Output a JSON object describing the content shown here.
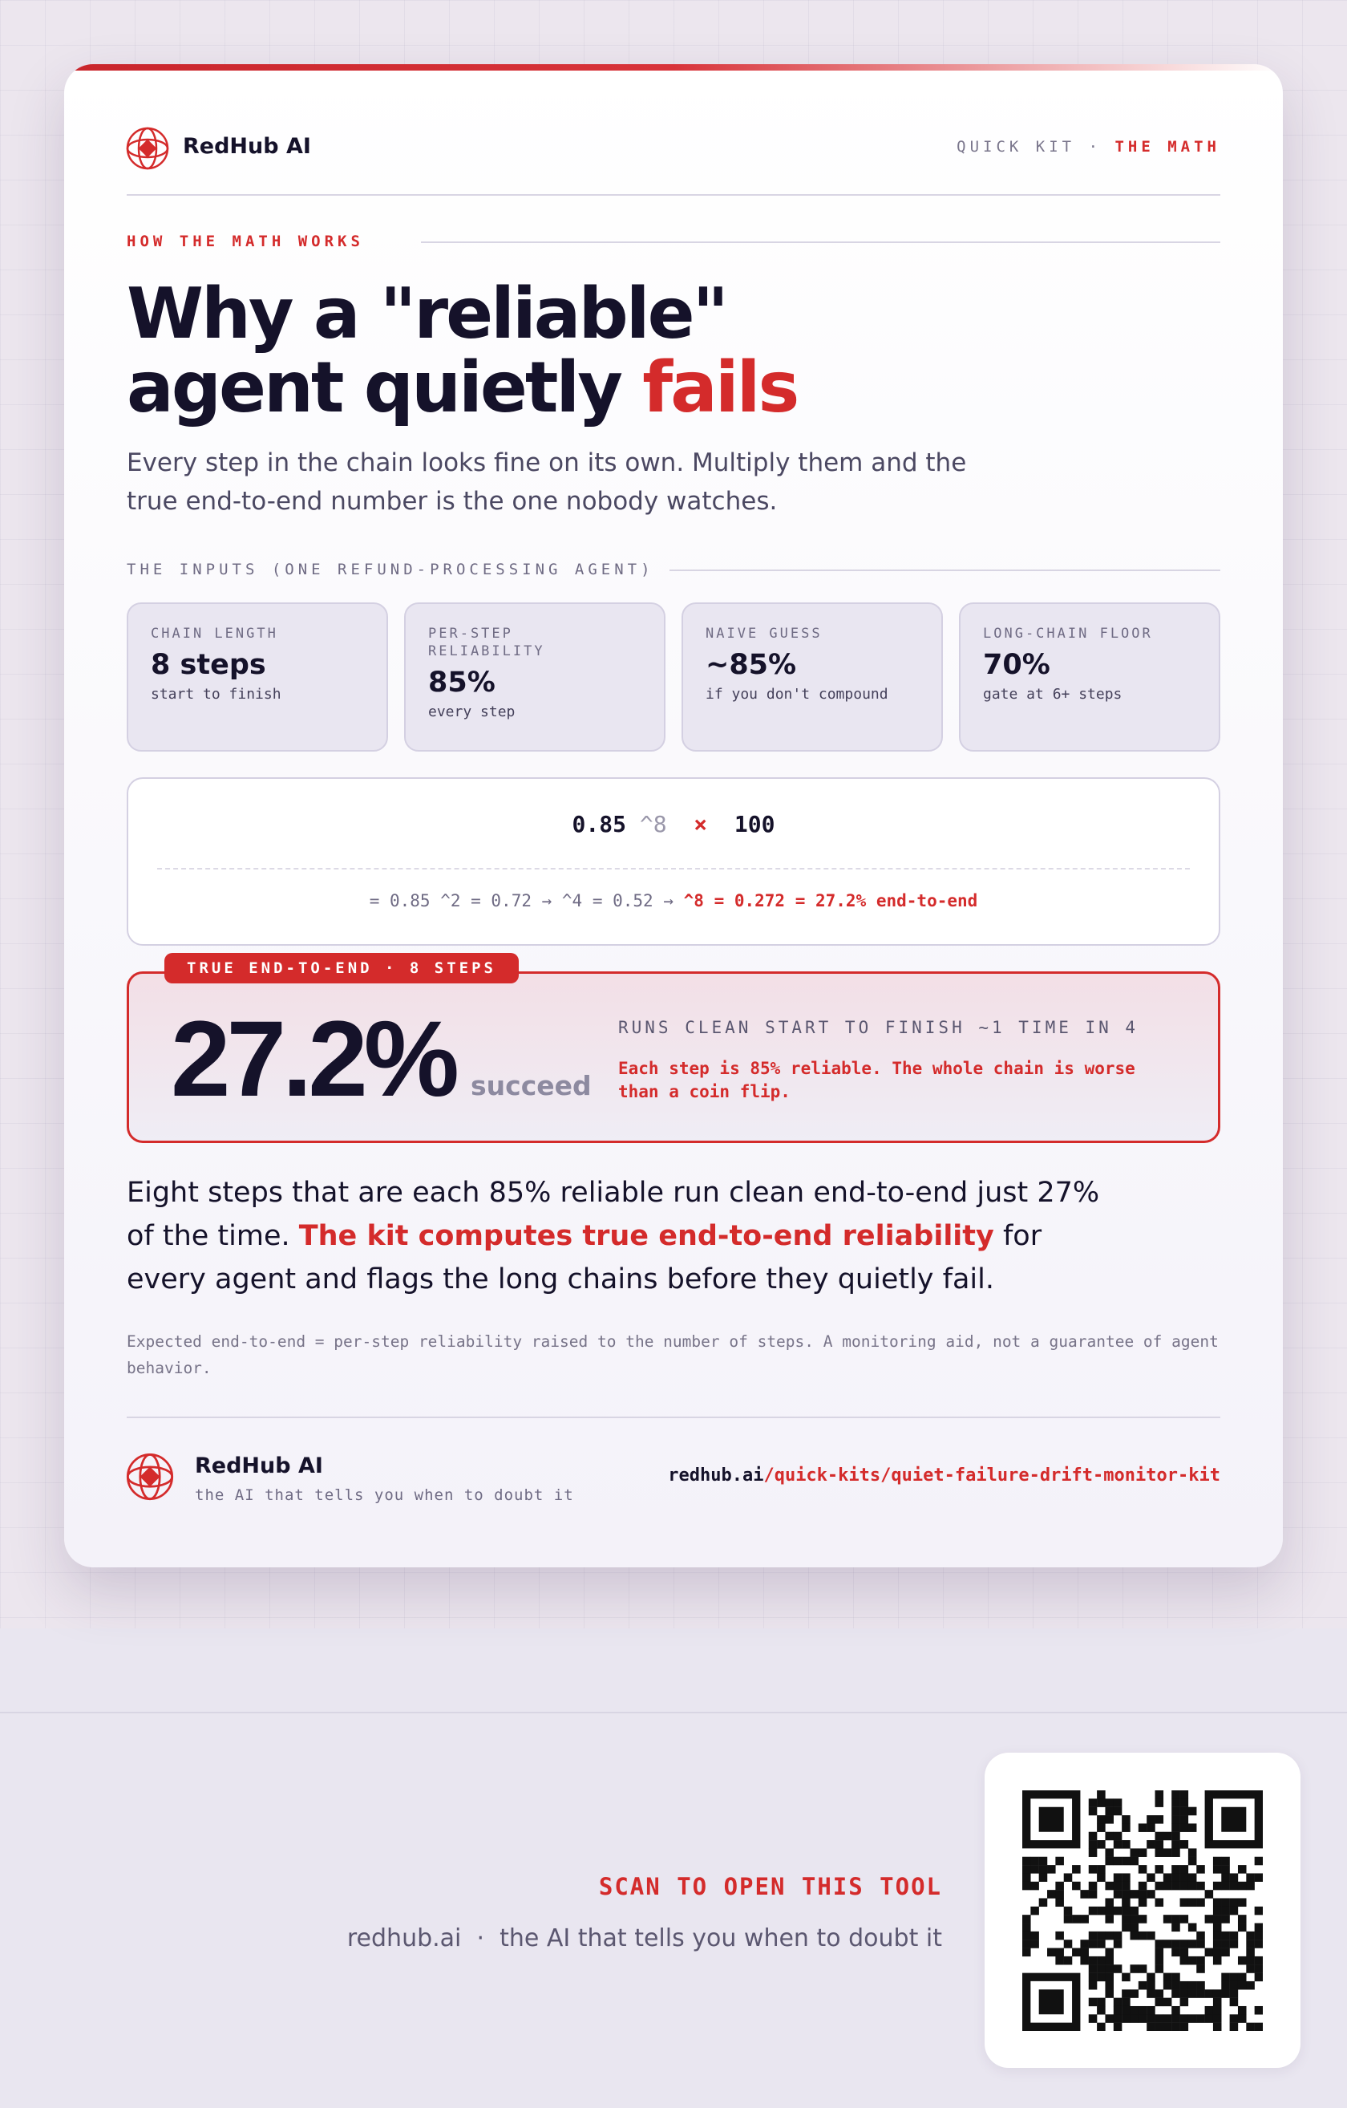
{
  "header": {
    "brand": "RedHub AI",
    "kit": "QUICK KIT",
    "sep": "·",
    "section": "THE MATH"
  },
  "eyebrow": "HOW THE MATH WORKS",
  "title": {
    "line1": "Why a \"reliable\"",
    "line2": "agent quietly ",
    "accent": "fails"
  },
  "subtitle": "Every step in the chain looks fine on its own. Multiply them and the true end-to-end number is the one nobody watches.",
  "inputs": {
    "label": "THE INPUTS (ONE REFUND-PROCESSING AGENT)",
    "cards": [
      {
        "label": "CHAIN LENGTH",
        "value": "8 steps",
        "sub": "start to finish"
      },
      {
        "label": "PER-STEP RELIABILITY",
        "value": "85%",
        "sub": "every step"
      },
      {
        "label": "NAIVE GUESS",
        "value": "~85%",
        "sub": "if you don't compound"
      },
      {
        "label": "LONG-CHAIN FLOOR",
        "value": "70%",
        "sub": "gate at 6+ steps"
      }
    ]
  },
  "formula": {
    "base": "0.85",
    "exponent": "^8",
    "operator": "×",
    "multiplier": "100",
    "steps": "= 0.85 ^2 = 0.72 → ^4 = 0.52 →",
    "result": "^8 = 0.272 = 27.2% end-to-end"
  },
  "result": {
    "badge": "TRUE END-TO-END · 8 STEPS",
    "value": "27.2%",
    "unit": "succeed",
    "heading": "RUNS CLEAN START TO FINISH ~1 TIME IN 4",
    "note": "Each step is 85% reliable. The whole chain is worse than a coin flip."
  },
  "paragraph": {
    "before": "Eight steps that are each 85% reliable run clean end-to-end just 27% of the time. ",
    "highlight": "The kit computes true end-to-end reliability",
    "after": " for every agent and flags the long chains before they quietly fail."
  },
  "footnote": "Expected end-to-end = per-step reliability raised to the number of steps. A monitoring aid, not a guarantee of agent behavior.",
  "footer": {
    "brand": "RedHub AI",
    "tagline": "the AI that tells you when to doubt it",
    "domain": "redhub.ai",
    "path": "/quick-kits/quiet-failure-drift-monitor-kit"
  },
  "bottom": {
    "cta": "SCAN TO OPEN THIS TOOL",
    "domain": "redhub.ai",
    "sep": "·",
    "tagline": "the AI that tells you when to doubt it"
  }
}
